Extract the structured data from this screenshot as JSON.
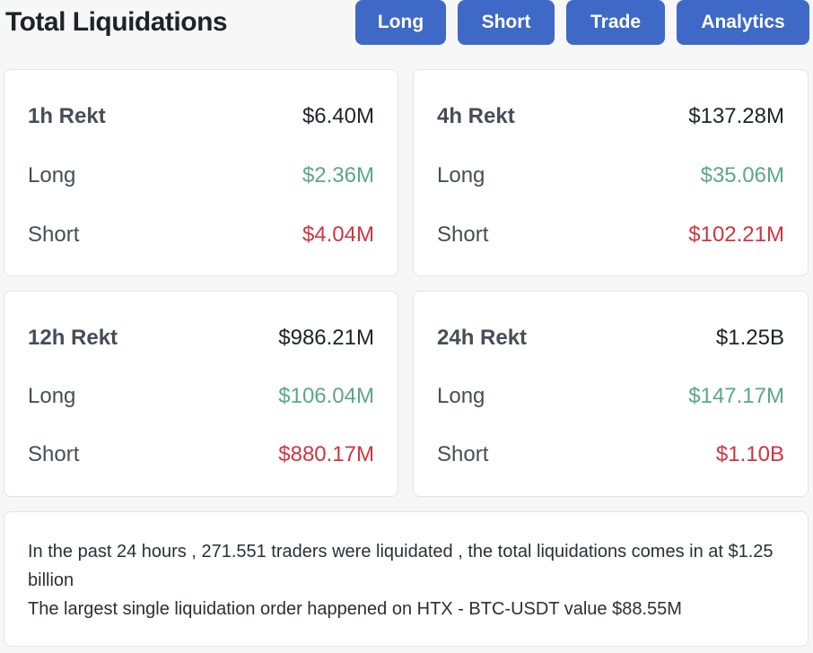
{
  "header": {
    "title": "Total Liquidations",
    "buttons": {
      "long": "Long",
      "short": "Short",
      "trade": "Trade",
      "analytics": "Analytics"
    }
  },
  "cards": [
    {
      "period": "1h Rekt",
      "total": "$6.40M",
      "long_label": "Long",
      "long": "$2.36M",
      "short_label": "Short",
      "short": "$4.04M"
    },
    {
      "period": "4h Rekt",
      "total": "$137.28M",
      "long_label": "Long",
      "long": "$35.06M",
      "short_label": "Short",
      "short": "$102.21M"
    },
    {
      "period": "12h Rekt",
      "total": "$986.21M",
      "long_label": "Long",
      "long": "$106.04M",
      "short_label": "Short",
      "short": "$880.17M"
    },
    {
      "period": "24h Rekt",
      "total": "$1.25B",
      "long_label": "Long",
      "long": "$147.17M",
      "short_label": "Short",
      "short": "$1.10B"
    }
  ],
  "summary": {
    "line1": "In the past 24 hours , 271.551 traders were liquidated , the total liquidations comes in at $1.25 billion",
    "line2": "The largest single liquidation order happened on HTX - BTC-USDT value $88.55M"
  },
  "colors": {
    "accent": "#3e69c7",
    "long": "#5aa886",
    "short": "#d0353f"
  }
}
